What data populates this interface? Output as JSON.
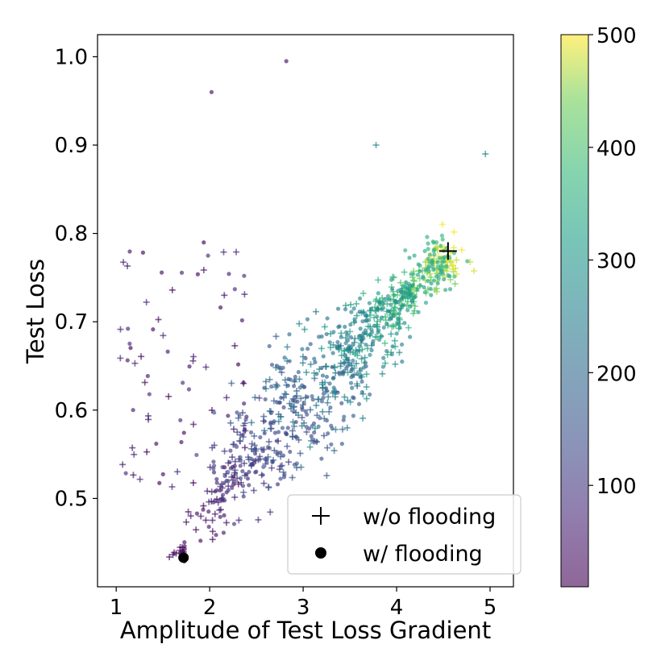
{
  "chart_data": {
    "type": "scatter",
    "title": "",
    "xlabel": "Amplitude of Test Loss Gradient",
    "ylabel": "Test Loss",
    "xlim": [
      0.8,
      5.25
    ],
    "ylim": [
      0.4,
      1.025
    ],
    "xticks": [
      "1",
      "2",
      "3",
      "4",
      "5"
    ],
    "yticks": [
      "0.5",
      "0.6",
      "0.7",
      "0.8",
      "0.9",
      "1.0"
    ],
    "grid": false,
    "colormap": "viridis",
    "colorbar": {
      "min": 10,
      "max": 500,
      "ticks": [
        "100",
        "200",
        "300",
        "400",
        "500"
      ]
    },
    "legend": {
      "placement": "bottom-right",
      "entries": [
        "w/o flooding",
        "w/ flooding"
      ]
    },
    "series": [
      {
        "name": "w/o flooding",
        "marker": "plus",
        "trend": {
          "start": [
            1.7,
            0.44
          ],
          "end": [
            4.55,
            0.78
          ]
        },
        "final_point": [
          4.55,
          0.78
        ],
        "final_marker": "plus-large-black"
      },
      {
        "name": "w/ flooding",
        "marker": "dot",
        "trend": {
          "start": [
            1.7,
            0.44
          ],
          "end": [
            4.55,
            0.78
          ]
        },
        "final_point": [
          1.72,
          0.433
        ],
        "final_marker": "dot-large-black"
      }
    ],
    "notable_points": [
      [
        2.82,
        0.995
      ],
      [
        2.02,
        0.96
      ],
      [
        3.78,
        0.9
      ],
      [
        4.95,
        0.89
      ]
    ]
  }
}
